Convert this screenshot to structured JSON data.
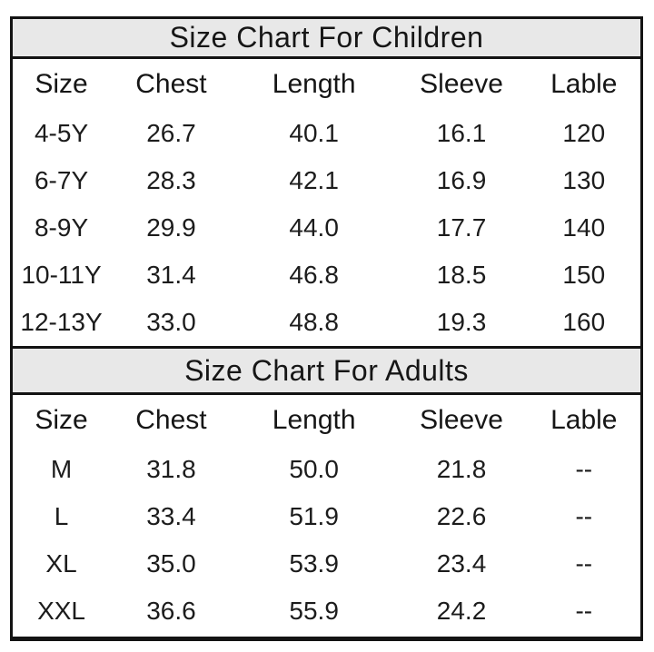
{
  "colors": {
    "band_background": "#e8e8e8",
    "border": "#131313",
    "text": "#1c1c1c",
    "page_background": "#ffffff"
  },
  "chart_data": [
    {
      "type": "table",
      "title": "Size Chart For Children",
      "columns": [
        "Size",
        "Chest",
        "Length",
        "Sleeve",
        "Lable"
      ],
      "rows": [
        [
          "4-5Y",
          "26.7",
          "40.1",
          "16.1",
          "120"
        ],
        [
          "6-7Y",
          "28.3",
          "42.1",
          "16.9",
          "130"
        ],
        [
          "8-9Y",
          "29.9",
          "44.0",
          "17.7",
          "140"
        ],
        [
          "10-11Y",
          "31.4",
          "46.8",
          "18.5",
          "150"
        ],
        [
          "12-13Y",
          "33.0",
          "48.8",
          "19.3",
          "160"
        ]
      ]
    },
    {
      "type": "table",
      "title": "Size Chart For Adults",
      "columns": [
        "Size",
        "Chest",
        "Length",
        "Sleeve",
        "Lable"
      ],
      "rows": [
        [
          "M",
          "31.8",
          "50.0",
          "21.8",
          "--"
        ],
        [
          "L",
          "33.4",
          "51.9",
          "22.6",
          "--"
        ],
        [
          "XL",
          "35.0",
          "53.9",
          "23.4",
          "--"
        ],
        [
          "XXL",
          "36.6",
          "55.9",
          "24.2",
          "--"
        ]
      ]
    }
  ]
}
